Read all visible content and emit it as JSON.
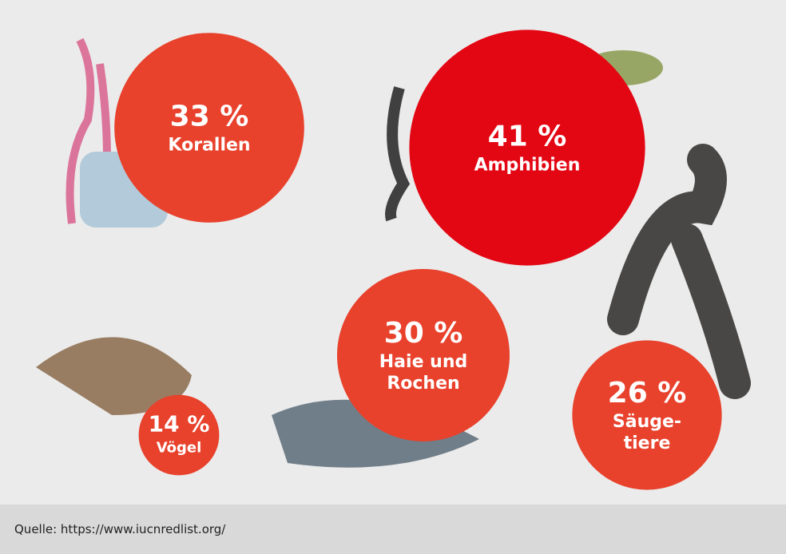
{
  "chart_data": {
    "type": "bubble",
    "categories": [
      "Korallen",
      "Amphibien",
      "Haie und\nRochen",
      "Vögel",
      "Säuge-\ntiere"
    ],
    "values": [
      33,
      41,
      30,
      14,
      26
    ],
    "value_labels": [
      "33 %",
      "41 %",
      "30 %",
      "14 %",
      "26 %"
    ],
    "colors": [
      "#e8412c",
      "#e30613",
      "#e8412c",
      "#e8412c",
      "#e8412c"
    ],
    "source": "Quelle: https://www.iucnredlist.org/"
  }
}
